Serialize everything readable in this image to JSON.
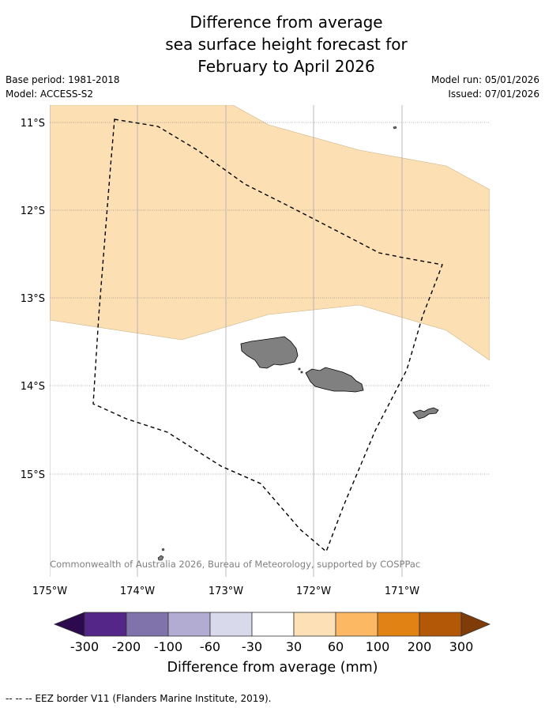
{
  "title": {
    "line1": "Difference from average",
    "line2": "sea surface height forecast for",
    "line3": "February to April 2026"
  },
  "meta": {
    "base_period": "Base period: 1981-2018",
    "model": "Model: ACCESS-S2",
    "model_run": "Model run: 05/01/2026",
    "issued": "Issued: 07/01/2026"
  },
  "map": {
    "latitude_labels": [
      "11°S",
      "12°S",
      "13°S",
      "14°S",
      "15°S"
    ],
    "longitude_labels": [
      "175°W",
      "174°W",
      "173°W",
      "172°W",
      "171°W"
    ],
    "copyright": "© Commonwealth of Australia 2026, Bureau of Meteorology, supported by COSPPac",
    "colors": {
      "ocean": "#ffffff",
      "anomaly_30_60": "#fddfb4",
      "land": "#808080",
      "eez_border": "#000000",
      "grid": "#888888"
    }
  },
  "colorbar": {
    "ticks": [
      "-300",
      "-200",
      "-100",
      "-60",
      "-30",
      "30",
      "60",
      "100",
      "200",
      "300"
    ],
    "colors": [
      "#2d0a4e",
      "#542688",
      "#8073ac",
      "#b2abd2",
      "#d8daeb",
      "#ffffff",
      "#fee0b6",
      "#fdb863",
      "#e08214",
      "#b35806",
      "#7f3b08"
    ],
    "label": "Difference from average (mm)"
  },
  "footer": {
    "legend": "--  --  -- EEZ border V11 (Flanders Marine Institute, 2019)."
  }
}
